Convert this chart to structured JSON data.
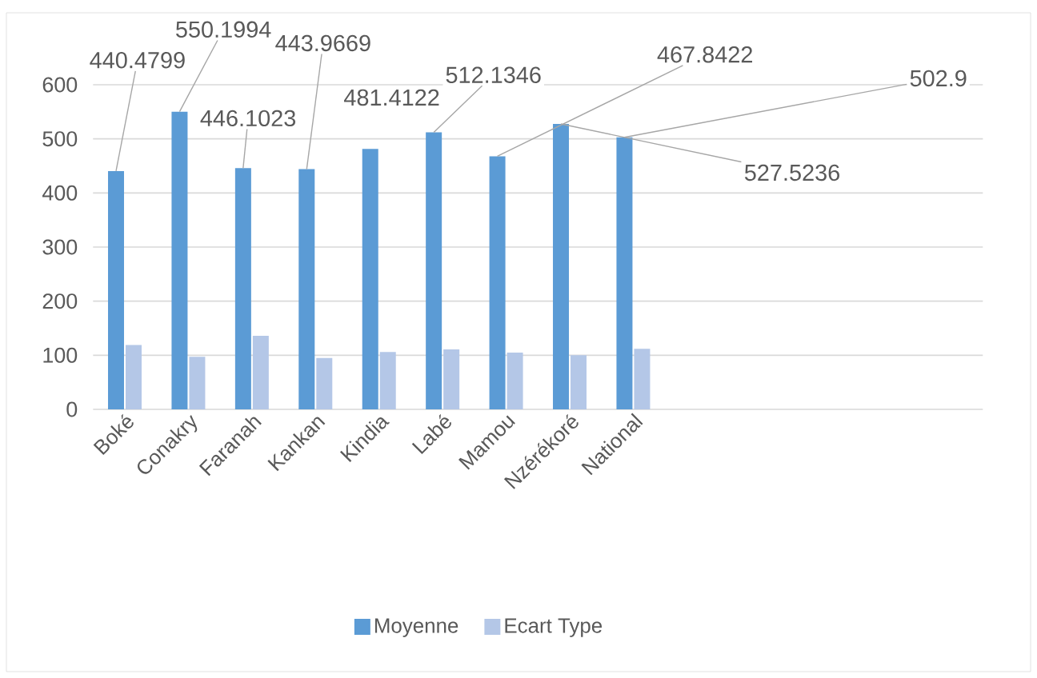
{
  "chart_data": {
    "type": "bar",
    "categories": [
      "Boké",
      "Conakry",
      "Faranah",
      "Kankan",
      "Kindia",
      "Labé",
      "Mamou",
      "Nzérékoré",
      "National",
      null,
      null,
      null,
      null,
      null
    ],
    "series": [
      {
        "name": "Moyenne",
        "color": "#5b9bd5",
        "values": [
          440.4799,
          550.1994,
          446.1023,
          443.9669,
          481.4122,
          512.1346,
          467.8422,
          527.5236,
          502.9,
          null,
          null,
          null,
          null,
          null
        ],
        "value_labels": [
          "440.4799",
          "550.1994",
          "446.1023",
          "443.9669",
          "481.4122",
          "512.1346",
          "467.8422",
          "527.5236",
          "502.9",
          null,
          null,
          null,
          null,
          null
        ]
      },
      {
        "name": "Ecart Type",
        "color": "#b4c7e7",
        "values": [
          119,
          97,
          136,
          95,
          106,
          111,
          105,
          100,
          112,
          null,
          null,
          null,
          null,
          null
        ]
      }
    ],
    "ylim": [
      0,
      600
    ],
    "yticks": [
      0,
      100,
      200,
      300,
      400,
      500,
      600
    ],
    "grid": "y",
    "legend": "bottom"
  }
}
